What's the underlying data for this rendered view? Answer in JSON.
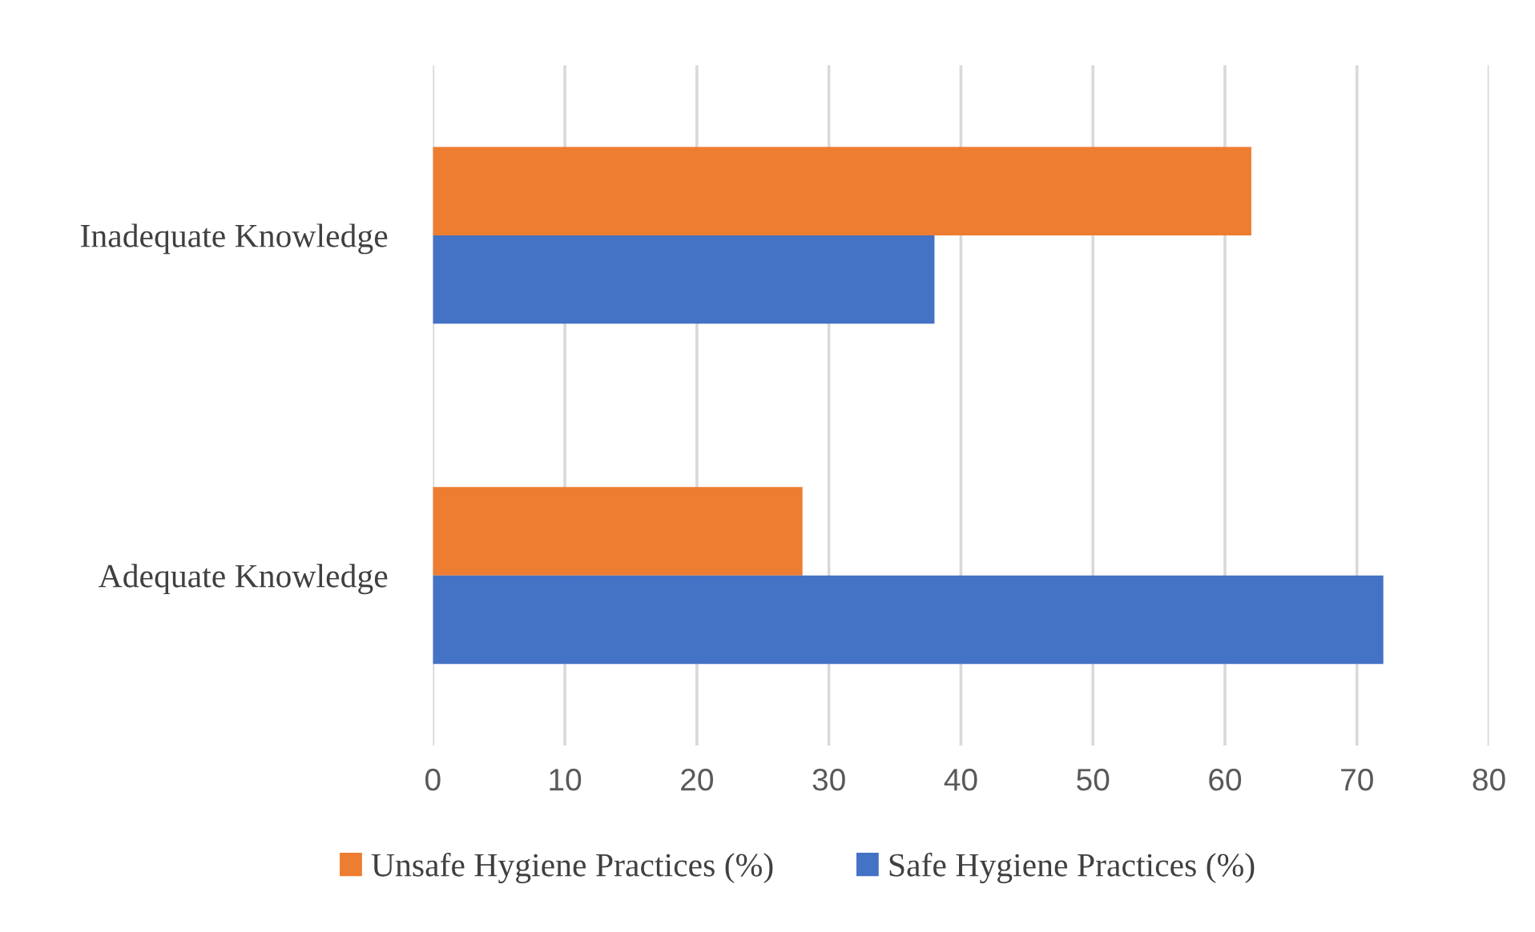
{
  "chart_data": {
    "type": "bar",
    "orientation": "horizontal",
    "categories": [
      "Inadequate Knowledge",
      "Adequate Knowledge"
    ],
    "series": [
      {
        "name": "Unsafe Hygiene Practices (%)",
        "color": "#ed7d31",
        "values": [
          62,
          28
        ]
      },
      {
        "name": "Safe Hygiene Practices (%)",
        "color": "#4472c4",
        "values": [
          38,
          72
        ]
      }
    ],
    "xlim": [
      0,
      80
    ],
    "xticks": [
      0,
      10,
      20,
      30,
      40,
      50,
      60,
      70,
      80
    ],
    "grid": "x",
    "legend": "bottom"
  }
}
